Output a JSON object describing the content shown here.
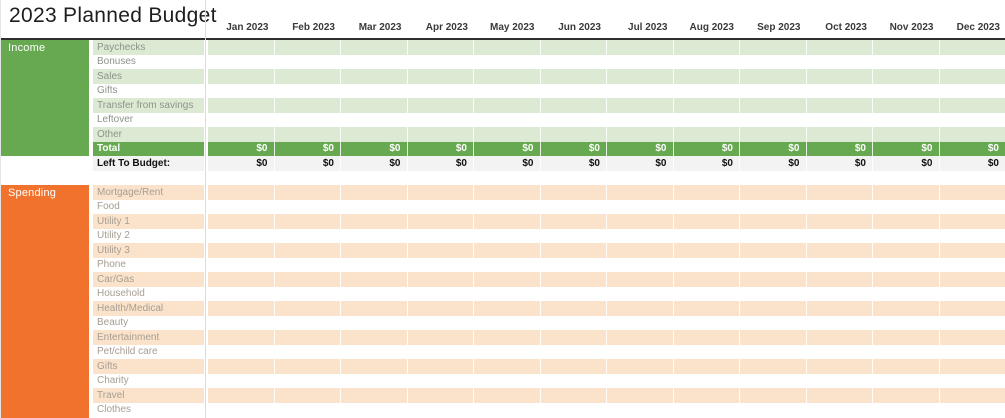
{
  "title": "2023 Planned Budget",
  "months": [
    "Jan 2023",
    "Feb 2023",
    "Mar 2023",
    "Apr 2023",
    "May 2023",
    "Jun 2023",
    "Jul 2023",
    "Aug 2023",
    "Sep 2023",
    "Oct 2023",
    "Nov 2023",
    "Dec 2023"
  ],
  "income": {
    "label": "Income",
    "rows": [
      "Paychecks",
      "Bonuses",
      "Sales",
      "Gifts",
      "Transfer from savings",
      "Leftover",
      "Other"
    ],
    "total_label": "Total",
    "total_values": [
      "$0",
      "$0",
      "$0",
      "$0",
      "$0",
      "$0",
      "$0",
      "$0",
      "$0",
      "$0",
      "$0",
      "$0"
    ]
  },
  "left_to_budget": {
    "label": "Left To Budget:",
    "values": [
      "$0",
      "$0",
      "$0",
      "$0",
      "$0",
      "$0",
      "$0",
      "$0",
      "$0",
      "$0",
      "$0",
      "$0"
    ]
  },
  "spending": {
    "label": "Spending",
    "rows": [
      "Mortgage/Rent",
      "Food",
      "Utility 1",
      "Utility 2",
      "Utility 3",
      "Phone",
      "Car/Gas",
      "Household",
      "Health/Medical",
      "Beauty",
      "Entertainment",
      "Pet/child care",
      "Gifts",
      "Charity",
      "Travel",
      "Clothes"
    ]
  },
  "colors": {
    "income_accent": "#67a950",
    "income_row_band": "#dcead3",
    "income_label_text": "#8d948a",
    "spending_accent": "#f1722d",
    "spending_row_band": "#fbe3cb",
    "spending_label_text": "#a69d92",
    "left_to_budget_bg": "#f3f3f3",
    "total_text": "#ffffff",
    "header_border": "#2f2f2f",
    "gridline": "#dcdcdc",
    "title_text": "#1e1e1e",
    "month_header_text": "#3a3a3a",
    "value_text": "#111111"
  }
}
